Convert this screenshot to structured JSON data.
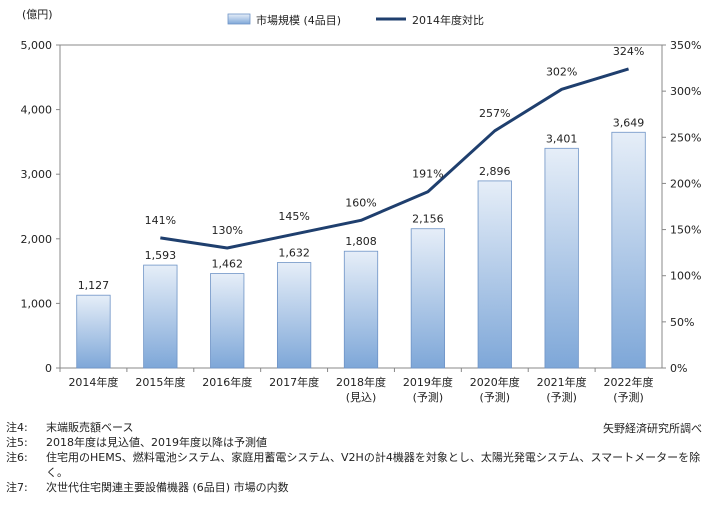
{
  "chart_data": {
    "type": "bar",
    "categories": [
      "2014年度",
      "2015年度",
      "2016年度",
      "2017年度",
      "2018年度",
      "2019年度",
      "2020年度",
      "2021年度",
      "2022年度"
    ],
    "category_sublabels": [
      "",
      "",
      "",
      "",
      "(見込)",
      "(予測)",
      "(予測)",
      "(予測)",
      "(予測)"
    ],
    "series": [
      {
        "name": "市場規模 (4品目)",
        "type": "bar",
        "axis": "left",
        "values": [
          1127,
          1593,
          1462,
          1632,
          1808,
          2156,
          2896,
          3401,
          3649
        ],
        "value_labels": [
          "1,127",
          "1,593",
          "1,462",
          "1,632",
          "1,808",
          "2,156",
          "2,896",
          "3,401",
          "3,649"
        ]
      },
      {
        "name": "2014年度対比",
        "type": "line",
        "axis": "right",
        "values": [
          null,
          141,
          130,
          145,
          160,
          191,
          257,
          302,
          324
        ],
        "value_labels": [
          "",
          "141%",
          "130%",
          "145%",
          "160%",
          "191%",
          "257%",
          "302%",
          "324%"
        ]
      }
    ],
    "y_left": {
      "unit": "(億円)",
      "ylim": [
        0,
        5000
      ],
      "ticks": [
        0,
        1000,
        2000,
        3000,
        4000,
        5000
      ],
      "tick_labels": [
        "0",
        "1,000",
        "2,000",
        "3,000",
        "4,000",
        "5,000"
      ]
    },
    "y_right": {
      "ylim": [
        0,
        350
      ],
      "ticks": [
        0,
        50,
        100,
        150,
        200,
        250,
        300,
        350
      ],
      "tick_labels": [
        "0%",
        "50%",
        "100%",
        "150%",
        "200%",
        "250%",
        "300%",
        "350%"
      ]
    },
    "legend": {
      "placement": "top-center",
      "bar_label": "市場規模 (4品目)",
      "line_label": "2014年度対比"
    },
    "colors": {
      "bar_top": "#e6eef8",
      "bar_bottom": "#7ea7d8",
      "bar_edge": "#6e93c6",
      "line": "#1f3f6e"
    }
  },
  "notes": [
    {
      "key": "注4:",
      "text": "末端販売額ベース"
    },
    {
      "key": "注5:",
      "text": "2018年度は見込値、2019年度以降は予測値"
    },
    {
      "key": "注6:",
      "text": "住宅用のHEMS、燃料電池システム、家庭用蓄電システム、V2Hの計4機器を対象とし、太陽光発電システム、スマートメーターを除く。"
    },
    {
      "key": "注7:",
      "text": "次世代住宅関連主要設備機器 (6品目) 市場の内数"
    }
  ],
  "source": "矢野経済研究所調べ"
}
